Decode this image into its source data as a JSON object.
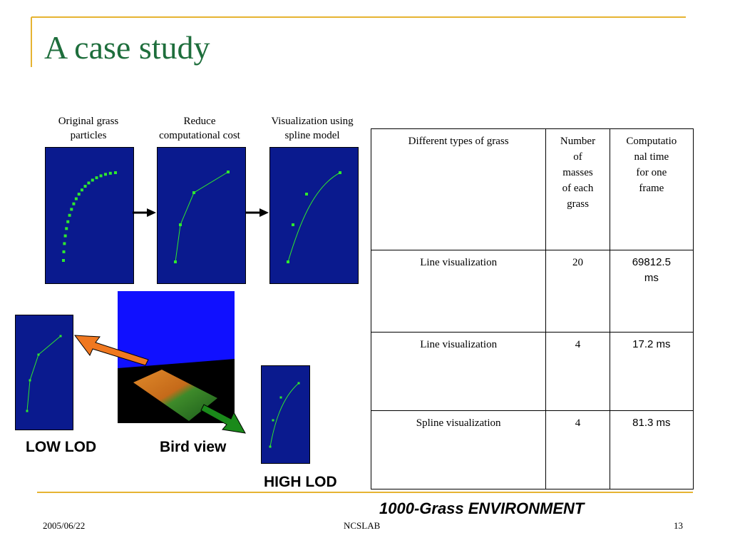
{
  "slide": {
    "title": "A case study",
    "accent_color": "#e6b432",
    "title_color": "#1e6e3c",
    "panel_color": "#0a1a8e",
    "grass_color": "#2ee82e"
  },
  "diagram": {
    "captions": [
      "Original grass\nparticles",
      "Reduce\ncomputational cost",
      "Visualization using\nspline model"
    ],
    "labels": {
      "low_lod": "LOW LOD",
      "bird_view": "Bird view",
      "high_lod": "HIGH LOD"
    }
  },
  "table": {
    "headers": [
      "Different types of grass",
      "Number\nof\nmasses\nof each\ngrass",
      "Computatio\nnal time\nfor one\nframe"
    ],
    "rows": [
      [
        "Line visualization",
        "20",
        "69812.5\nms"
      ],
      [
        "Line visualization",
        "4",
        "17.2 ms"
      ],
      [
        "Spline visualization",
        "4",
        "81.3 ms"
      ]
    ],
    "caption": "1000-Grass ENVIRONMENT"
  },
  "footer": {
    "date": "2005/06/22",
    "org": "NCSLAB",
    "page": "13"
  }
}
